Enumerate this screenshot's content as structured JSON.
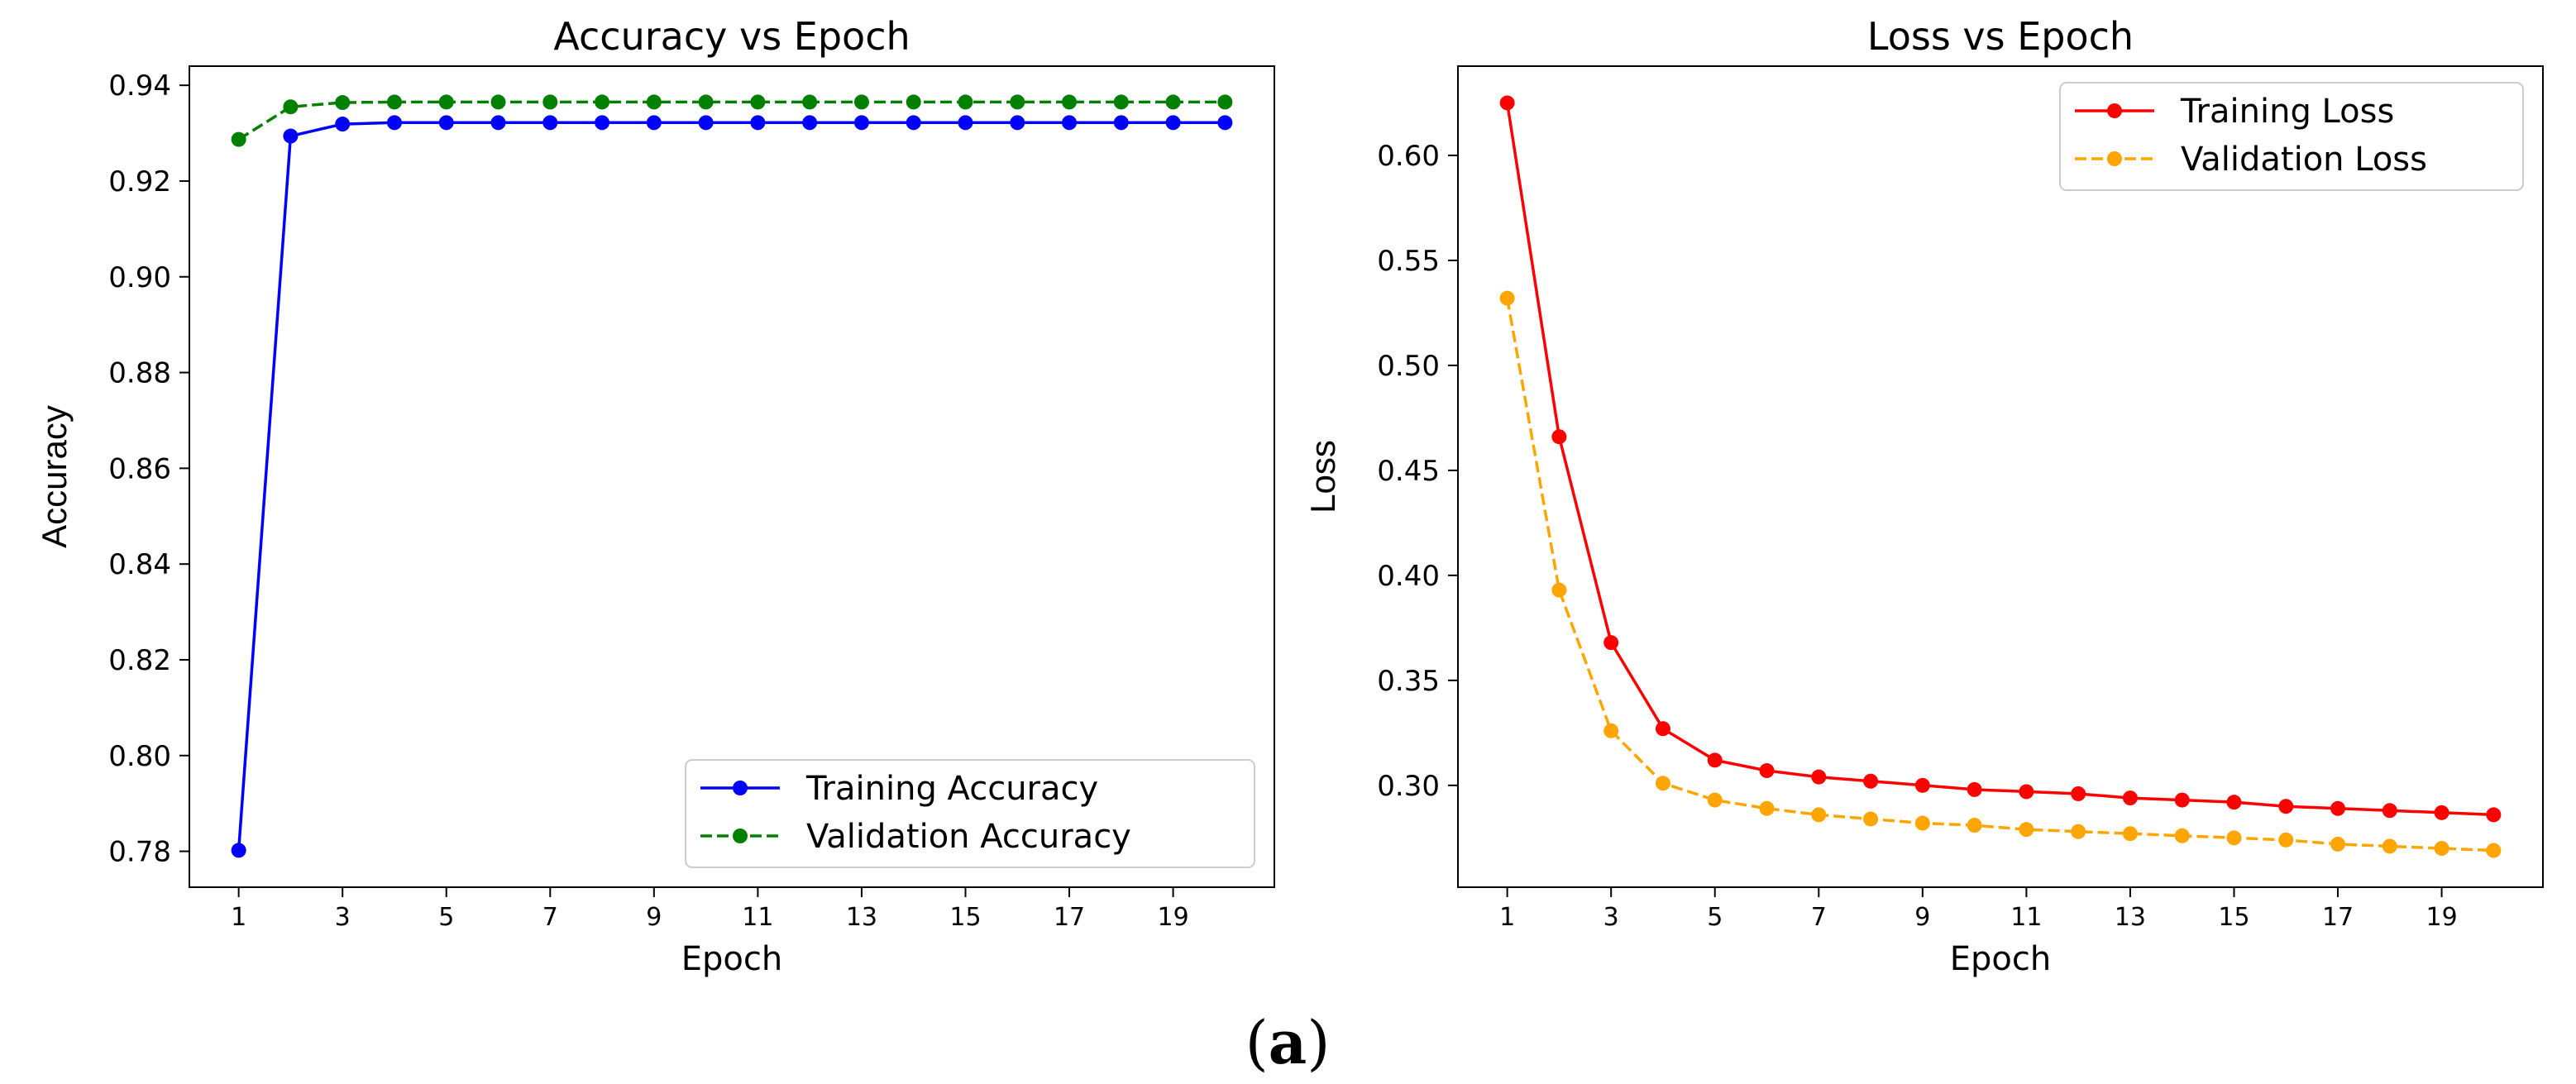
{
  "caption": {
    "open": "(",
    "letter": "a",
    "close": ")"
  },
  "chart_data": [
    {
      "type": "line",
      "title": "Accuracy vs Epoch",
      "xlabel": "Epoch",
      "ylabel": "Accuracy",
      "x": [
        1,
        2,
        3,
        4,
        5,
        6,
        7,
        8,
        9,
        10,
        11,
        12,
        13,
        14,
        15,
        16,
        17,
        18,
        19,
        20
      ],
      "xticks": [
        1,
        3,
        5,
        7,
        9,
        11,
        13,
        15,
        17,
        19
      ],
      "yticks": [
        0.78,
        0.8,
        0.82,
        0.84,
        0.86,
        0.88,
        0.9,
        0.92,
        0.94
      ],
      "ytick_labels": [
        "0.78",
        "0.80",
        "0.82",
        "0.84",
        "0.86",
        "0.88",
        "0.90",
        "0.92",
        "0.94"
      ],
      "xlim": [
        0.05,
        20.95
      ],
      "ylim": [
        0.7725,
        0.944
      ],
      "legend_position": "lower-right",
      "series": [
        {
          "name": "Training Accuracy",
          "color": "#0000ff",
          "linestyle": "solid",
          "marker": "circle",
          "values": [
            0.7802,
            0.9294,
            0.9319,
            0.9322,
            0.9322,
            0.9322,
            0.9322,
            0.9322,
            0.9322,
            0.9322,
            0.9322,
            0.9322,
            0.9322,
            0.9322,
            0.9322,
            0.9322,
            0.9322,
            0.9322,
            0.9322,
            0.9322
          ]
        },
        {
          "name": "Validation Accuracy",
          "color": "#008000",
          "linestyle": "dashed",
          "marker": "circle",
          "values": [
            0.9287,
            0.9355,
            0.9364,
            0.9365,
            0.9365,
            0.9365,
            0.9365,
            0.9365,
            0.9365,
            0.9365,
            0.9365,
            0.9365,
            0.9365,
            0.9365,
            0.9365,
            0.9365,
            0.9365,
            0.9365,
            0.9365,
            0.9365
          ]
        }
      ]
    },
    {
      "type": "line",
      "title": "Loss vs Epoch",
      "xlabel": "Epoch",
      "ylabel": "Loss",
      "x": [
        1,
        2,
        3,
        4,
        5,
        6,
        7,
        8,
        9,
        10,
        11,
        12,
        13,
        14,
        15,
        16,
        17,
        18,
        19,
        20
      ],
      "xticks": [
        1,
        3,
        5,
        7,
        9,
        11,
        13,
        15,
        17,
        19
      ],
      "yticks": [
        0.3,
        0.35,
        0.4,
        0.45,
        0.5,
        0.55,
        0.6
      ],
      "ytick_labels": [
        "0.30",
        "0.35",
        "0.40",
        "0.45",
        "0.50",
        "0.55",
        "0.60"
      ],
      "xlim": [
        0.05,
        20.95
      ],
      "ylim": [
        0.2515,
        0.6425
      ],
      "legend_position": "upper-right",
      "series": [
        {
          "name": "Training Loss",
          "color": "#ff0000",
          "linestyle": "solid",
          "marker": "circle",
          "values": [
            0.625,
            0.466,
            0.368,
            0.327,
            0.312,
            0.307,
            0.304,
            0.302,
            0.3,
            0.298,
            0.297,
            0.296,
            0.294,
            0.293,
            0.292,
            0.29,
            0.289,
            0.288,
            0.287,
            0.286
          ]
        },
        {
          "name": "Validation Loss",
          "color": "#ffa500",
          "linestyle": "dashed",
          "marker": "circle",
          "values": [
            0.532,
            0.393,
            0.326,
            0.301,
            0.293,
            0.289,
            0.286,
            0.284,
            0.282,
            0.281,
            0.279,
            0.278,
            0.277,
            0.276,
            0.275,
            0.274,
            0.272,
            0.271,
            0.27,
            0.269
          ]
        }
      ]
    }
  ]
}
